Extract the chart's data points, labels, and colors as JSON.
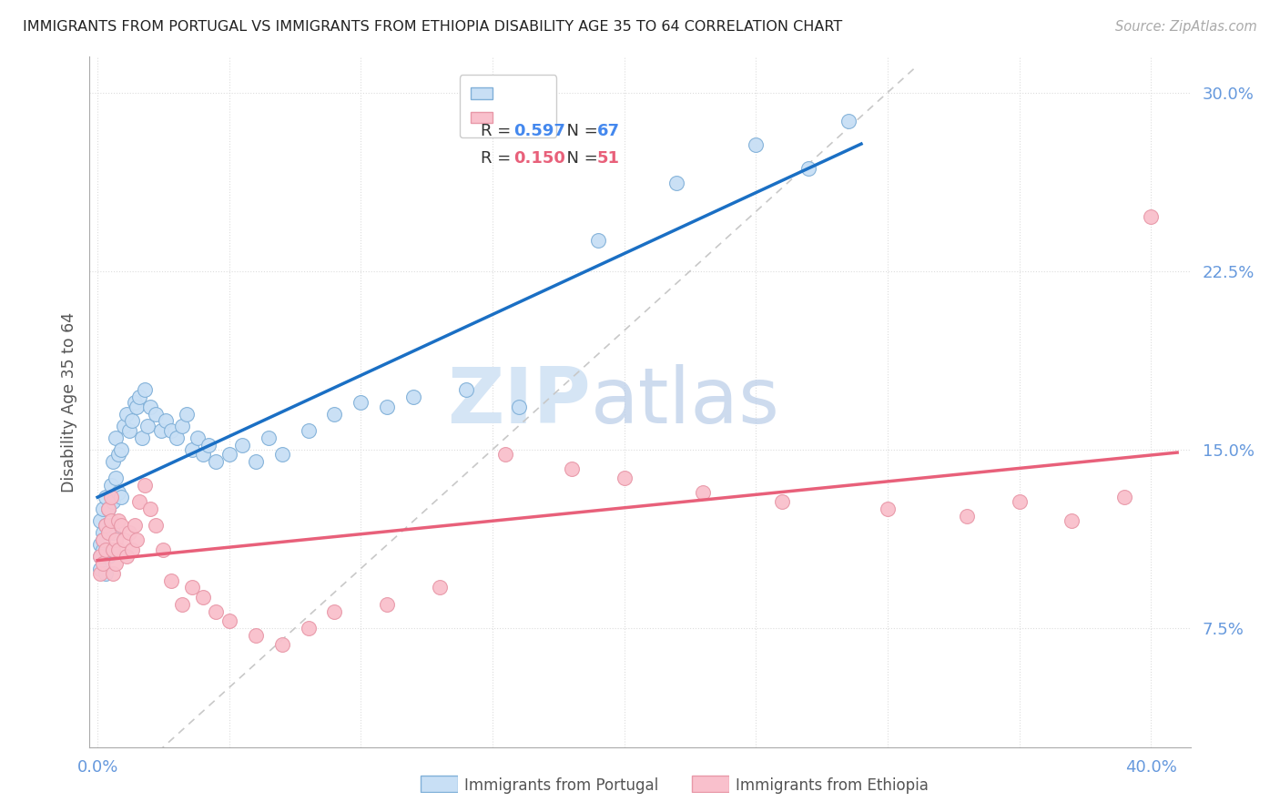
{
  "title": "IMMIGRANTS FROM PORTUGAL VS IMMIGRANTS FROM ETHIOPIA DISABILITY AGE 35 TO 64 CORRELATION CHART",
  "source": "Source: ZipAtlas.com",
  "ylabel": "Disability Age 35 to 64",
  "xlim": [
    -0.003,
    0.415
  ],
  "ylim": [
    0.025,
    0.315
  ],
  "R_portugal": 0.597,
  "N_portugal": 67,
  "R_ethiopia": 0.15,
  "N_ethiopia": 51,
  "color_portugal_fill": "#c8dff5",
  "color_portugal_edge": "#80b0d8",
  "color_portugal_line": "#1a6fc4",
  "color_ethiopia_fill": "#f9c0cc",
  "color_ethiopia_edge": "#e898a8",
  "color_ethiopia_line": "#e8607a",
  "color_refline": "#c8c8c8",
  "tick_color": "#6699dd",
  "grid_color": "#dddddd",
  "legend_label_portugal": "Immigrants from Portugal",
  "legend_label_ethiopia": "Immigrants from Ethiopia",
  "watermark_zip": "ZIP",
  "watermark_atlas": "atlas",
  "watermark_color": "#dde8f5",
  "portugal_x": [
    0.001,
    0.001,
    0.001,
    0.001,
    0.002,
    0.002,
    0.002,
    0.002,
    0.003,
    0.003,
    0.003,
    0.003,
    0.004,
    0.004,
    0.004,
    0.005,
    0.005,
    0.005,
    0.006,
    0.006,
    0.006,
    0.007,
    0.007,
    0.008,
    0.008,
    0.009,
    0.009,
    0.01,
    0.011,
    0.012,
    0.013,
    0.014,
    0.015,
    0.016,
    0.017,
    0.018,
    0.019,
    0.02,
    0.022,
    0.024,
    0.026,
    0.028,
    0.03,
    0.032,
    0.034,
    0.036,
    0.038,
    0.04,
    0.042,
    0.045,
    0.05,
    0.055,
    0.06,
    0.065,
    0.07,
    0.08,
    0.09,
    0.1,
    0.11,
    0.12,
    0.14,
    0.16,
    0.19,
    0.22,
    0.25,
    0.27,
    0.285
  ],
  "portugal_y": [
    0.12,
    0.11,
    0.105,
    0.1,
    0.115,
    0.108,
    0.125,
    0.112,
    0.13,
    0.118,
    0.108,
    0.098,
    0.125,
    0.115,
    0.105,
    0.135,
    0.118,
    0.108,
    0.145,
    0.128,
    0.115,
    0.155,
    0.138,
    0.148,
    0.132,
    0.15,
    0.13,
    0.16,
    0.165,
    0.158,
    0.162,
    0.17,
    0.168,
    0.172,
    0.155,
    0.175,
    0.16,
    0.168,
    0.165,
    0.158,
    0.162,
    0.158,
    0.155,
    0.16,
    0.165,
    0.15,
    0.155,
    0.148,
    0.152,
    0.145,
    0.148,
    0.152,
    0.145,
    0.155,
    0.148,
    0.158,
    0.165,
    0.17,
    0.168,
    0.172,
    0.175,
    0.168,
    0.238,
    0.262,
    0.278,
    0.268,
    0.288
  ],
  "ethiopia_x": [
    0.001,
    0.001,
    0.002,
    0.002,
    0.003,
    0.003,
    0.004,
    0.004,
    0.005,
    0.005,
    0.006,
    0.006,
    0.007,
    0.007,
    0.008,
    0.008,
    0.009,
    0.01,
    0.011,
    0.012,
    0.013,
    0.014,
    0.015,
    0.016,
    0.018,
    0.02,
    0.022,
    0.025,
    0.028,
    0.032,
    0.036,
    0.04,
    0.045,
    0.05,
    0.06,
    0.07,
    0.08,
    0.09,
    0.11,
    0.13,
    0.155,
    0.18,
    0.2,
    0.23,
    0.26,
    0.3,
    0.33,
    0.35,
    0.37,
    0.39,
    0.4
  ],
  "ethiopia_y": [
    0.105,
    0.098,
    0.112,
    0.102,
    0.118,
    0.108,
    0.125,
    0.115,
    0.13,
    0.12,
    0.108,
    0.098,
    0.112,
    0.102,
    0.12,
    0.108,
    0.118,
    0.112,
    0.105,
    0.115,
    0.108,
    0.118,
    0.112,
    0.128,
    0.135,
    0.125,
    0.118,
    0.108,
    0.095,
    0.085,
    0.092,
    0.088,
    0.082,
    0.078,
    0.072,
    0.068,
    0.075,
    0.082,
    0.085,
    0.092,
    0.148,
    0.142,
    0.138,
    0.132,
    0.128,
    0.125,
    0.122,
    0.128,
    0.12,
    0.13,
    0.248
  ]
}
